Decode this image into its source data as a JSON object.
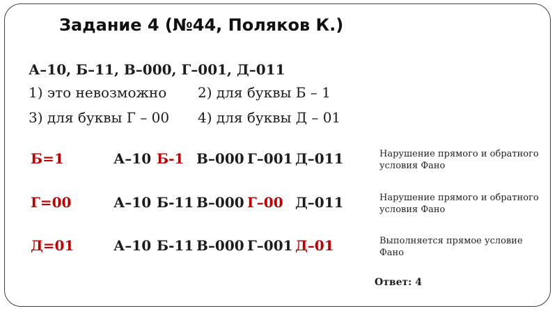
{
  "colors": {
    "red": "#c00000",
    "text": "#1c1c1c",
    "border": "#3f3f3f"
  },
  "title": "Задание 4 (№44, Поляков К.)",
  "problem": {
    "codes_line": "А–10, Б–11, В–000, Г–001, Д–011",
    "options": [
      "1) это невозможно",
      "2) для буквы Б – 1",
      "3) для буквы Г – 00",
      "4) для буквы Д – 01"
    ]
  },
  "cases": [
    {
      "label": "Б=1",
      "codes": [
        {
          "t": "А–10",
          "red": false
        },
        {
          "t": "Б-1",
          "red": true
        },
        {
          "t": "В–000",
          "red": false
        },
        {
          "t": "Г–001",
          "red": false
        },
        {
          "t": "Д–011",
          "red": false
        }
      ],
      "note": "Нарушение прямого и обратного\nусловия Фано"
    },
    {
      "label": "Г=00",
      "codes": [
        {
          "t": "А–10",
          "red": false
        },
        {
          "t": "Б-11",
          "red": false
        },
        {
          "t": "В–000",
          "red": false
        },
        {
          "t": "Г–00",
          "red": true
        },
        {
          "t": "Д–011",
          "red": false
        }
      ],
      "note": "Нарушение прямого и обратного\nусловия Фано"
    },
    {
      "label": "Д=01",
      "codes": [
        {
          "t": "А–10",
          "red": false
        },
        {
          "t": "Б-11",
          "red": false
        },
        {
          "t": "В–000",
          "red": false
        },
        {
          "t": "Г–001",
          "red": false
        },
        {
          "t": "Д–01",
          "red": true
        }
      ],
      "note": "Выполняется прямое условие\nФано"
    }
  ],
  "answer": "Ответ: 4"
}
